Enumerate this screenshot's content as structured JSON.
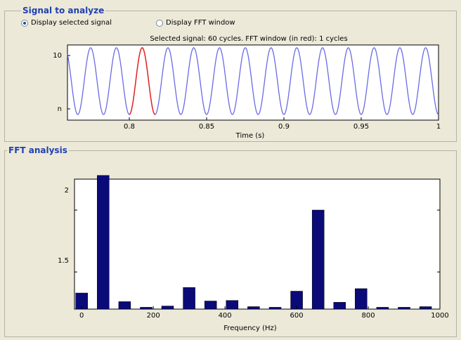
{
  "signal_panel": {
    "title": "Signal to analyze",
    "radio_selected_label": "Display selected signal",
    "radio_fft_label": "Display FFT window",
    "plot_title": "Selected signal: 60 cycles. FFT window (in red): 1 cycles",
    "xlabel": "Time (s)",
    "xticks": [
      "0.8",
      "0.85",
      "0.9",
      "0.95",
      "1"
    ],
    "yticks": [
      "10",
      "n"
    ]
  },
  "fft_panel": {
    "title": "FFT analysis",
    "xlabel": "Frequency (Hz)",
    "xticks": [
      "0",
      "200",
      "400",
      "600",
      "800",
      "1000"
    ],
    "yticks": [
      "2",
      "1.5"
    ]
  },
  "colors": {
    "signal_line": "#6a6ae6",
    "fft_window_line": "#e02020",
    "bar_fill": "#0a0a78",
    "panel_title": "#2040b0"
  },
  "chart_data": [
    {
      "type": "line",
      "title": "Selected signal: 60 cycles. FFT window (in red): 1 cycles",
      "xlabel": "Time (s)",
      "xlim": [
        0.76,
        1.0
      ],
      "frequency_hz": 60,
      "window_highlight": [
        0.8,
        0.8167
      ],
      "grid": false
    },
    {
      "type": "bar",
      "xlabel": "Frequency (Hz)",
      "xlim": [
        -20,
        1000
      ],
      "ylim": [
        1.2,
        2.25
      ],
      "x": [
        0,
        60,
        120,
        180,
        240,
        300,
        360,
        420,
        480,
        540,
        600,
        660,
        720,
        780,
        840,
        900,
        960
      ],
      "values": [
        1.33,
        2.28,
        1.26,
        1.215,
        1.225,
        1.375,
        1.265,
        1.27,
        1.22,
        1.215,
        1.345,
        2.0,
        1.255,
        1.365,
        1.215,
        1.215,
        1.22
      ],
      "grid": false
    }
  ]
}
